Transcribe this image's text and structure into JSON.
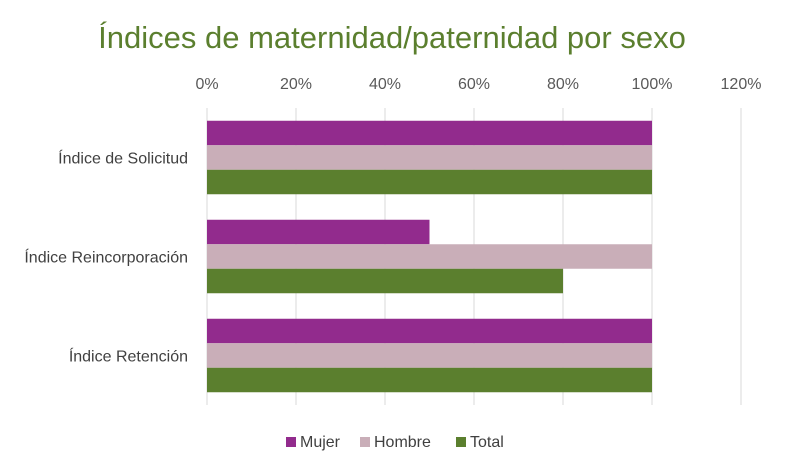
{
  "chart_data": {
    "type": "bar",
    "orientation": "horizontal",
    "title": "Índices de maternidad/paternidad por sexo",
    "categories": [
      "Índice de Solicitud",
      "Índice Reincorporación",
      "Índice Retención"
    ],
    "series": [
      {
        "name": "Mujer",
        "color": "#922b8d",
        "values": [
          100,
          50,
          100
        ]
      },
      {
        "name": "Hombre",
        "color": "#c9aeb8",
        "values": [
          100,
          100,
          100
        ]
      },
      {
        "name": "Total",
        "color": "#5b7f2e",
        "values": [
          100,
          80,
          100
        ]
      }
    ],
    "xlim": [
      0,
      120
    ],
    "x_ticks": [
      0,
      20,
      40,
      60,
      80,
      100,
      120
    ],
    "x_tick_labels": [
      "0%",
      "20%",
      "40%",
      "60%",
      "80%",
      "100%",
      "120%"
    ],
    "x_axis_position": "top",
    "grid": true,
    "legend_position": "bottom"
  }
}
